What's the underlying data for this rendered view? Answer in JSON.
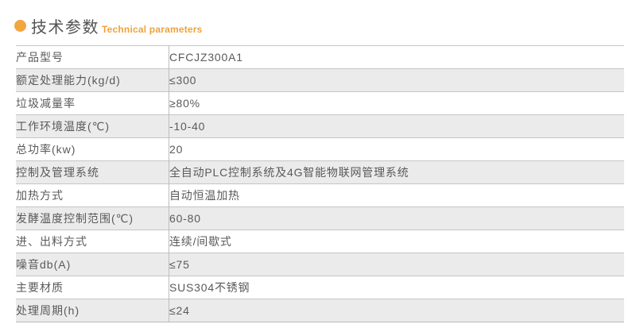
{
  "header": {
    "title": "技术参数",
    "subtitle": "Technical parameters",
    "bullet_icon": "orange-dot",
    "accent_color": "#F2A640",
    "title_color": "#525252"
  },
  "table": {
    "columns": [
      "parameter",
      "value"
    ],
    "row_colors": {
      "odd": "#ffffff",
      "even": "#ebebeb"
    },
    "border_color": "#c5c5c5",
    "rows": [
      {
        "label": "产品型号",
        "value": "CFCJZ300A1"
      },
      {
        "label": "额定处理能力(kg/d)",
        "value": "≤300"
      },
      {
        "label": "垃圾减量率",
        "value": "≥80%"
      },
      {
        "label": "工作环境温度(℃)",
        "value": "-10-40"
      },
      {
        "label": "总功率(kw)",
        "value": "20"
      },
      {
        "label": "控制及管理系统",
        "value": "全自动PLC控制系统及4G智能物联网管理系统"
      },
      {
        "label": "加热方式",
        "value": "自动恒温加热"
      },
      {
        "label": "发酵温度控制范围(℃)",
        "value": "60-80"
      },
      {
        "label": "进、出料方式",
        "value": "连续/间歇式"
      },
      {
        "label": "噪音db(A)",
        "value": "≤75"
      },
      {
        "label": "主要材质",
        "value": "SUS304不锈钢"
      },
      {
        "label": "处理周期(h)",
        "value": "≤24"
      }
    ]
  }
}
